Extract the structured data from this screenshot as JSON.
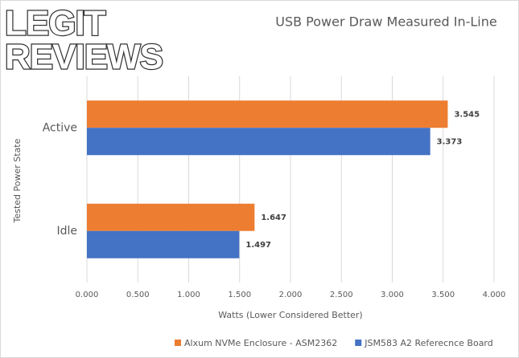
{
  "logo_lines": [
    "LEGIT",
    "REVIEWS"
  ],
  "chart_data": {
    "type": "hbar",
    "title": "USB Power Draw Measured In-Line",
    "x_label": "Watts (Lower Considered Better)",
    "y_label": "Tested Power State",
    "categories": [
      "Active",
      "Idle"
    ],
    "series": [
      {
        "name": "Alxum NVMe Enclosure - ASM2362",
        "color": "#ed7d31",
        "values": [
          3.545,
          1.647
        ]
      },
      {
        "name": "JSM583 A2 Referecnce Board",
        "color": "#4472c4",
        "values": [
          3.373,
          1.497
        ]
      }
    ],
    "xlim": [
      0,
      4
    ],
    "xticks": [
      {
        "value": 0,
        "label": "0.000"
      },
      {
        "value": 0.5,
        "label": "0.500"
      },
      {
        "value": 1,
        "label": "1.000"
      },
      {
        "value": 1.5,
        "label": "1.500"
      },
      {
        "value": 2,
        "label": "2.000"
      },
      {
        "value": 2.5,
        "label": "2.500"
      },
      {
        "value": 3,
        "label": "3.000"
      },
      {
        "value": 3.5,
        "label": "3.500"
      },
      {
        "value": 4,
        "label": "4.000"
      }
    ],
    "grid": true,
    "legend": "bottom"
  }
}
